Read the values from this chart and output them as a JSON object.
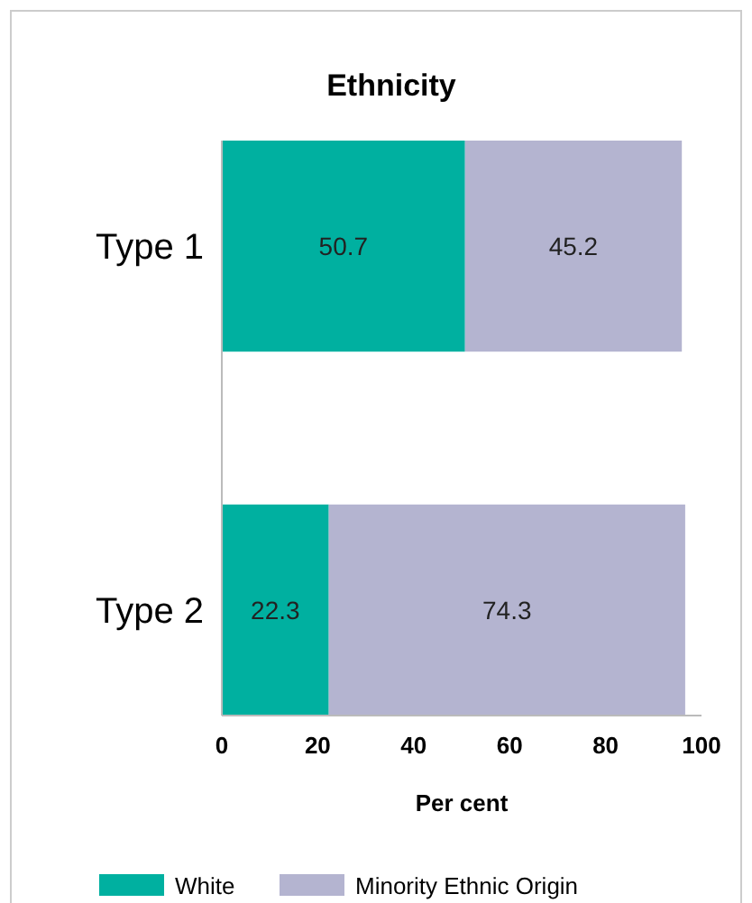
{
  "chart_data": {
    "type": "bar",
    "title": "Ethnicity",
    "xlabel": "Per cent",
    "orientation": "horizontal",
    "stacked": true,
    "categories": [
      "Type 1",
      "Type 2"
    ],
    "series": [
      {
        "name": "White",
        "color": "#00b0a0",
        "values": [
          50.7,
          22.3
        ]
      },
      {
        "name": "Minority Ethnic Origin",
        "color": "#b4b4d0",
        "values": [
          45.2,
          74.3
        ]
      }
    ],
    "xlim": [
      0,
      100
    ],
    "xticks": [
      0,
      20,
      40,
      60,
      80,
      100
    ],
    "data_labels": true,
    "grid": false,
    "legend": "bottom"
  }
}
